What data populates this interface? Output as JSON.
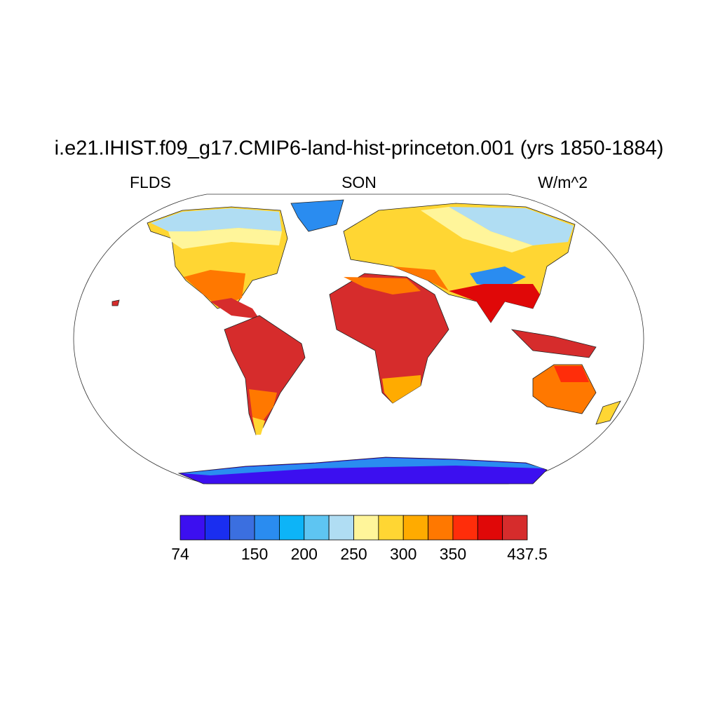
{
  "title": "i.e21.IHIST.f09_g17.CMIP6-land-hist-princeton.001 (yrs 1850-1884)",
  "left_string": "FLDS",
  "center_string": "SON",
  "right_string": "W/m^2",
  "colorbar": {
    "colors": [
      "#3c0ff0",
      "#1a2ef0",
      "#3b6fe0",
      "#2a8cf0",
      "#0db4f7",
      "#5ec5f2",
      "#b0ddf3",
      "#fff59a",
      "#ffd633",
      "#ffab00",
      "#ff7800",
      "#ff2d0a",
      "#e00808",
      "#d62c2c"
    ],
    "ticks": [
      74,
      150,
      200,
      250,
      300,
      350,
      437.5
    ]
  }
}
